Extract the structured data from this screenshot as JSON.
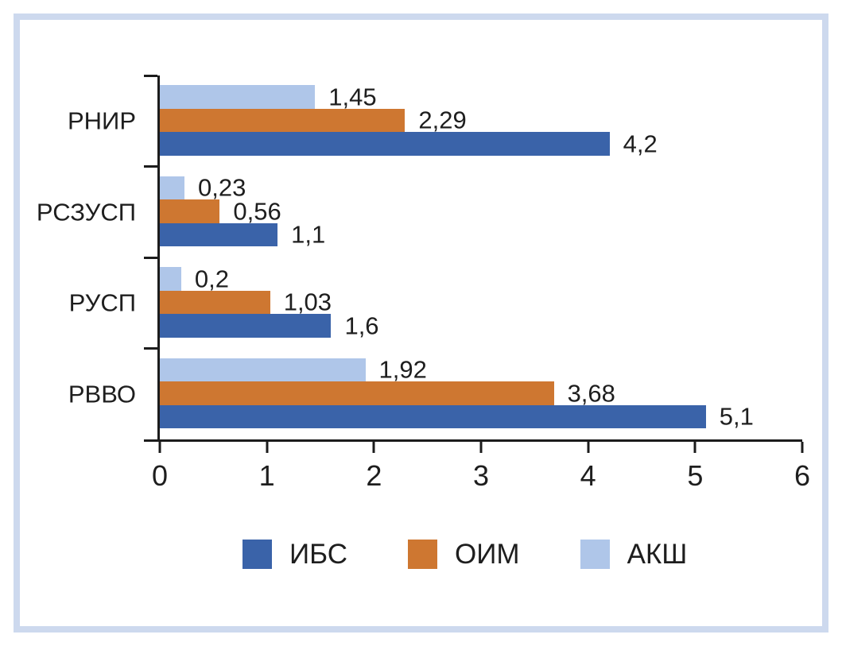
{
  "frame": {
    "border_color": "#cdd9ee",
    "background": "#ffffff"
  },
  "chart_data": {
    "type": "bar",
    "orientation": "horizontal",
    "title": "",
    "xlabel": "",
    "ylabel": "",
    "categories": [
      "РНИР",
      "РСЗУСП",
      "РУСП",
      "РВВО"
    ],
    "series": [
      {
        "name": "ИБС",
        "color": "#3a63a9",
        "values": [
          4.2,
          1.1,
          1.6,
          5.1
        ],
        "display_labels": [
          "4,2",
          "1,1",
          "1,6",
          "5,1"
        ]
      },
      {
        "name": "ОИМ",
        "color": "#ce7731",
        "values": [
          2.29,
          0.56,
          1.03,
          3.68
        ],
        "display_labels": [
          "2,29",
          "0,56",
          "1,03",
          "3,68"
        ]
      },
      {
        "name": "АКШ",
        "color": "#afc6e9",
        "values": [
          1.45,
          0.23,
          0.2,
          1.92
        ],
        "display_labels": [
          "1,45",
          "0,23",
          "0,2",
          "1,92"
        ]
      }
    ],
    "bar_order_top_to_bottom": [
      "АКШ",
      "ОИМ",
      "ИБС"
    ],
    "xlim": [
      0,
      6
    ],
    "x_ticks": [
      "0",
      "1",
      "2",
      "3",
      "4",
      "5",
      "6"
    ],
    "grid": false,
    "decimal_separator": ",",
    "legend": {
      "position": "bottom",
      "entries": [
        "ИБС",
        "ОИМ",
        "АКШ"
      ]
    }
  }
}
